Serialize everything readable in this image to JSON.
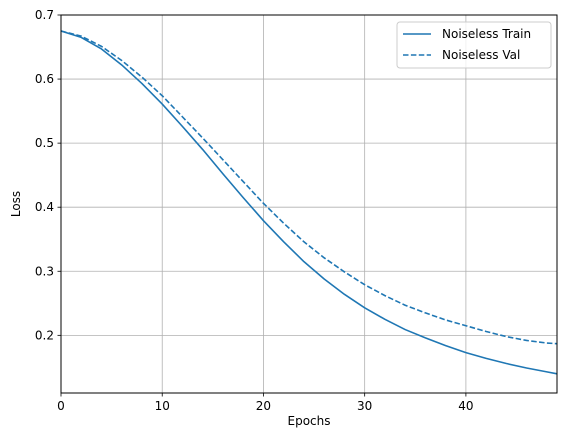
{
  "chart_data": {
    "type": "line",
    "title": "",
    "xlabel": "Epochs",
    "ylabel": "Loss",
    "xlim": [
      0,
      49
    ],
    "ylim": [
      0.11,
      0.7
    ],
    "xticks": [
      0,
      10,
      20,
      30,
      40
    ],
    "yticks": [
      0.2,
      0.3,
      0.4,
      0.5,
      0.6,
      0.7
    ],
    "grid": true,
    "legend_position": "top-right",
    "series_color": "#1f77b4",
    "x": [
      0,
      2,
      4,
      6,
      8,
      10,
      12,
      14,
      16,
      18,
      20,
      22,
      24,
      26,
      28,
      30,
      32,
      34,
      36,
      38,
      40,
      42,
      44,
      46,
      48,
      49
    ],
    "series": [
      {
        "name": "Noiseless Train",
        "style": "solid",
        "values": [
          0.675,
          0.665,
          0.647,
          0.622,
          0.593,
          0.561,
          0.526,
          0.49,
          0.452,
          0.415,
          0.379,
          0.346,
          0.315,
          0.288,
          0.264,
          0.243,
          0.225,
          0.209,
          0.196,
          0.184,
          0.173,
          0.164,
          0.156,
          0.149,
          0.143,
          0.14
        ]
      },
      {
        "name": "Noiseless Val",
        "style": "dashed",
        "values": [
          0.675,
          0.667,
          0.651,
          0.629,
          0.603,
          0.574,
          0.541,
          0.508,
          0.474,
          0.44,
          0.406,
          0.375,
          0.346,
          0.321,
          0.299,
          0.279,
          0.262,
          0.247,
          0.235,
          0.224,
          0.215,
          0.206,
          0.198,
          0.192,
          0.188,
          0.187
        ]
      }
    ]
  }
}
